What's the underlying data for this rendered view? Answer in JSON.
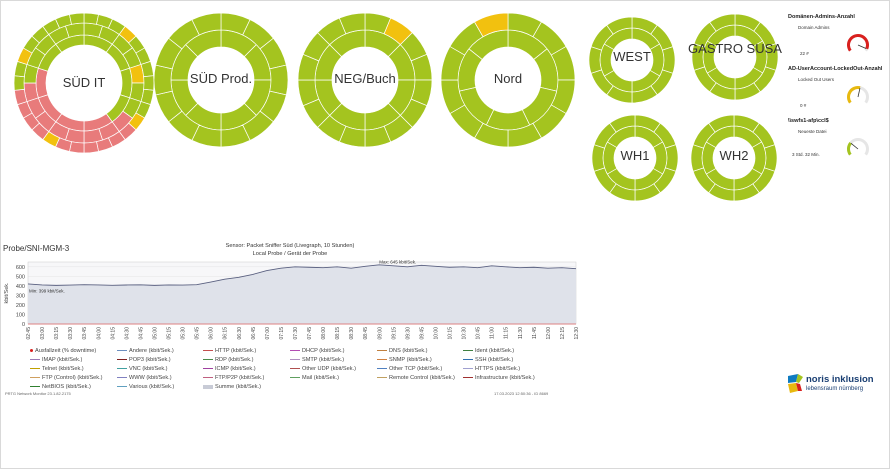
{
  "sunbursts": [
    {
      "label": "SÜD IT"
    },
    {
      "label": "SÜD Prod."
    },
    {
      "label": "NEG/Buch"
    },
    {
      "label": "Nord"
    },
    {
      "label": "WEST"
    },
    {
      "label": "GASTRO SUSA"
    },
    {
      "label": "WH1"
    },
    {
      "label": "WH2"
    }
  ],
  "gauges": [
    {
      "title": "Domänen-Admins-Anzahl",
      "subtitle": "Domain Admins",
      "value": "22 #",
      "color": "#d9201e",
      "level": 0.95
    },
    {
      "title": "AD-UserAccount-LockedOut-Anzahl",
      "subtitle": "Locked Out Users",
      "value": "0 #",
      "color": "#e8b90f",
      "level": 0.55
    },
    {
      "title": "\\\\swfs1-afp\\ccl$",
      "subtitle": "Neueste Datei",
      "value": "3 Std. 32 Min.",
      "color": "#a4c41f",
      "level": 0.3
    }
  ],
  "chart_panel": {
    "probe_title": "Probe/SNI-MGM-3",
    "sensor_line": "Sensor: Packet Sniffer Süd (Livegraph, 10 Stunden)",
    "sub_line": "Local Probe / Gerät der Probe",
    "footer_left": "PRTG Network Monitor 23.1.82.2175",
    "footer_right": "17.03.2023 12:50:36 - ID 8669"
  },
  "chart_data": {
    "type": "area",
    "ylabel": "kbit/Sek.",
    "ylim": [
      0,
      650
    ],
    "yticks": [
      0,
      100,
      200,
      300,
      400,
      500,
      600
    ],
    "x": [
      "02:45",
      "03:00",
      "03:15",
      "03:30",
      "03:45",
      "04:00",
      "04:15",
      "04:30",
      "04:45",
      "05:00",
      "05:15",
      "05:30",
      "05:45",
      "06:00",
      "06:15",
      "06:30",
      "06:45",
      "07:00",
      "07:15",
      "07:30",
      "07:45",
      "08:00",
      "08:15",
      "08:30",
      "08:45",
      "09:00",
      "09:15",
      "09:30",
      "09:45",
      "10:00",
      "10:15",
      "10:30",
      "10:45",
      "11:00",
      "11:15",
      "11:30",
      "11:45",
      "12:00",
      "12:15",
      "12:30"
    ],
    "series": [
      {
        "name": "Summe (kbit/Sek.)",
        "values": [
          420,
          410,
          405,
          408,
          412,
          410,
          406,
          409,
          411,
          405,
          410,
          408,
          412,
          440,
          470,
          490,
          520,
          560,
          585,
          600,
          595,
          590,
          600,
          585,
          605,
          620,
          610,
          600,
          615,
          605,
          595,
          600,
          590,
          610,
          600,
          590,
          595,
          585,
          590,
          580
        ]
      }
    ],
    "annotations": [
      "Max: 645 kbit/Sek.",
      "Min: 399 kbit/Sek."
    ]
  },
  "legend": [
    {
      "label": "Ausfallzeit (% downtime)",
      "color": "#d9201e"
    },
    {
      "label": "Andere (kbit/Sek.)",
      "color": "#6c8fbf"
    },
    {
      "label": "HTTP (kbit/Sek.)",
      "color": "#c44e4e"
    },
    {
      "label": "DHCP (kbit/Sek.)",
      "color": "#b34db3"
    },
    {
      "label": "DNS (kbit/Sek.)",
      "color": "#c08040"
    },
    {
      "label": "Ident (kbit/Sek.)",
      "color": "#408040"
    },
    {
      "label": "IMAP (kbit/Sek.)",
      "color": "#9b7ab5"
    },
    {
      "label": "POP3 (kbit/Sek.)",
      "color": "#802020"
    },
    {
      "label": "RDP (kbit/Sek.)",
      "color": "#4a8a4a"
    },
    {
      "label": "SMTP (kbit/Sek.)",
      "color": "#b090c0"
    },
    {
      "label": "SNMP (kbit/Sek.)",
      "color": "#d08040"
    },
    {
      "label": "SSH (kbit/Sek.)",
      "color": "#3070b0"
    },
    {
      "label": "Telnet (kbit/Sek.)",
      "color": "#c0a000"
    },
    {
      "label": "VNC (kbit/Sek.)",
      "color": "#40a0a0"
    },
    {
      "label": "ICMP (kbit/Sek.)",
      "color": "#a040a0"
    },
    {
      "label": "Other UDP (kbit/Sek.)",
      "color": "#b05050"
    },
    {
      "label": "Other TCP (kbit/Sek.)",
      "color": "#5080c0"
    },
    {
      "label": "HTTPS (kbit/Sek.)",
      "color": "#a0a0d0"
    },
    {
      "label": "FTP (Control) (kbit/Sek.)",
      "color": "#d0a060"
    },
    {
      "label": "WWW (kbit/Sek.)",
      "color": "#8080c0"
    },
    {
      "label": "FTP/P2P (kbit/Sek.)",
      "color": "#c06080"
    },
    {
      "label": "Mail (kbit/Sek.)",
      "color": "#60a060"
    },
    {
      "label": "Remote Control (kbit/Sek.)",
      "color": "#c0a060"
    },
    {
      "label": "Infrastructure (kbit/Sek.)",
      "color": "#a03030"
    },
    {
      "label": "NetBIOS (kbit/Sek.)",
      "color": "#308030"
    },
    {
      "label": "Various (kbit/Sek.)",
      "color": "#60a0c0"
    },
    {
      "label": "Summe (kbit/Sek.)",
      "color": "#c8cbd6"
    }
  ],
  "logo": {
    "name": "noris inklusion",
    "tagline": "lebensraum nürnberg",
    "colors": [
      "#0f7bc0",
      "#a4c41f",
      "#e8b90f",
      "#d9201e"
    ]
  }
}
